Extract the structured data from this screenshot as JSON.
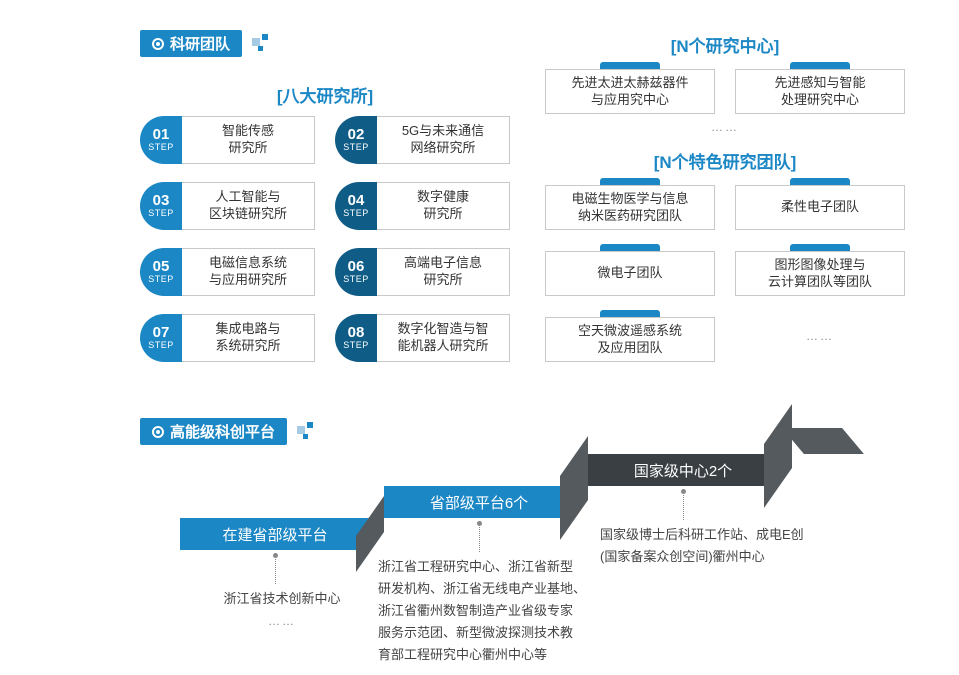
{
  "colors": {
    "primary": "#1b87c5",
    "deep": "#0f5d86",
    "gray_side": "#555a5e",
    "gray_front": "#3a3f43",
    "border": "#c9c9c9",
    "text": "#333333",
    "muted": "#888888"
  },
  "section1": {
    "header": "科研团队",
    "left_title": "[八大研究所]",
    "steps": [
      {
        "num": "01",
        "label": "智能传感\n研究所",
        "variant": "light"
      },
      {
        "num": "02",
        "label": "5G与未来通信\n网络研究所",
        "variant": "deep"
      },
      {
        "num": "03",
        "label": "人工智能与\n区块链研究所",
        "variant": "light"
      },
      {
        "num": "04",
        "label": "数字健康\n研究所",
        "variant": "deep"
      },
      {
        "num": "05",
        "label": "电磁信息系统\n与应用研究所",
        "variant": "light"
      },
      {
        "num": "06",
        "label": "高端电子信息\n研究所",
        "variant": "deep"
      },
      {
        "num": "07",
        "label": "集成电路与\n系统研究所",
        "variant": "light"
      },
      {
        "num": "08",
        "label": "数字化智造与智\n能机器人研究所",
        "variant": "deep"
      }
    ],
    "centers_title": "[N个研究中心]",
    "centers": [
      "先进太进太赫兹器件\n与应用究中心",
      "先进感知与智能\n处理研究中心"
    ],
    "centers_ellipsis": "……",
    "teams_title": "[N个特色研究团队]",
    "teams_row1": [
      "电磁生物医学与信息\n纳米医药研究团队",
      "柔性电子团队"
    ],
    "teams_row2": [
      "微电子团队",
      "图形图像处理与\n云计算团队等团队"
    ],
    "teams_row3_single": "空天微波遥感系统\n及应用团队",
    "teams_ellipsis": "……"
  },
  "section2": {
    "header": "高能级科创平台",
    "stairs": [
      {
        "title": "在建省部级平台",
        "front_color": "#1b87c5",
        "side_color": "#555a5e",
        "desc": "浙江省技术创新中心",
        "desc_ellipsis": "……"
      },
      {
        "title": "省部级平台6个",
        "front_color": "#1b87c5",
        "side_color": "#555a5e",
        "desc": "浙江省工程研究中心、浙江省新型\n研发机构、浙江省无线电产业基地、\n浙江省衢州数智制造产业省级专家\n服务示范团、新型微波探测技术教\n育部工程研究中心衢州中心等"
      },
      {
        "title": "国家级中心2个",
        "front_color": "#3a3f43",
        "side_color": "#555a5e",
        "desc": "国家级博士后科研工作站、成电E创\n(国家备案众创空间)衢州中心"
      }
    ]
  }
}
